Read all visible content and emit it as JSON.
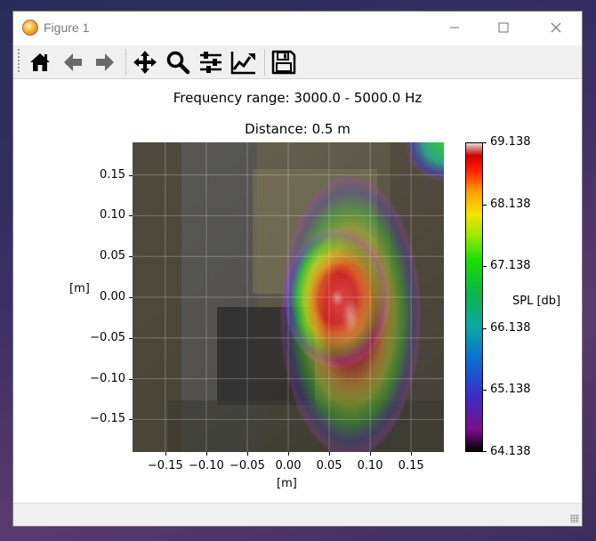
{
  "window": {
    "title": "Figure 1",
    "controls": {
      "minimize": "—",
      "maximize": "☐",
      "close": "✕"
    }
  },
  "toolbar": {
    "buttons": [
      {
        "icon": "home-icon"
      },
      {
        "icon": "back-arrow-icon"
      },
      {
        "icon": "forward-arrow-icon"
      },
      {
        "icon": "pan-icon"
      },
      {
        "icon": "zoom-icon"
      },
      {
        "icon": "subplots-configure-icon"
      },
      {
        "icon": "edit-axis-icon"
      },
      {
        "icon": "save-icon"
      }
    ]
  },
  "figure": {
    "title_line1": "Frequency range: 3000.0 - 5000.0 Hz",
    "title_line2": "Distance: 0.5 m"
  },
  "chart_data": {
    "type": "heatmap",
    "title": "Frequency range: 3000.0 - 5000.0 Hz",
    "subtitle": "Distance: 0.5 m",
    "xlabel": "[m]",
    "ylabel": "[m]",
    "xlim": [
      -0.19,
      0.19
    ],
    "ylim": [
      -0.19,
      0.19
    ],
    "x_ticks": [
      "−0.15",
      "−0.10",
      "−0.05",
      "0.00",
      "0.05",
      "0.10",
      "0.15"
    ],
    "y_ticks": [
      "0.15",
      "0.10",
      "0.05",
      "0.00",
      "−0.05",
      "−0.10",
      "−0.15"
    ],
    "x_tick_values": [
      -0.15,
      -0.1,
      -0.05,
      0.0,
      0.05,
      0.1,
      0.15
    ],
    "y_tick_values": [
      0.15,
      0.1,
      0.05,
      0.0,
      -0.05,
      -0.1,
      -0.15
    ],
    "grid": true,
    "colorbar": {
      "label": "SPL [db]",
      "range": [
        64.138,
        69.138
      ],
      "ticks": [
        "69.138",
        "68.138",
        "67.138",
        "66.138",
        "65.138",
        "64.138"
      ],
      "tick_values": [
        69.138,
        68.138,
        67.138,
        66.138,
        65.138,
        64.138
      ]
    },
    "hotspots": [
      {
        "x": 0.085,
        "y": 0.01,
        "level": 69.1
      },
      {
        "x": 0.17,
        "y": 0.17,
        "level": 67.0
      }
    ]
  }
}
